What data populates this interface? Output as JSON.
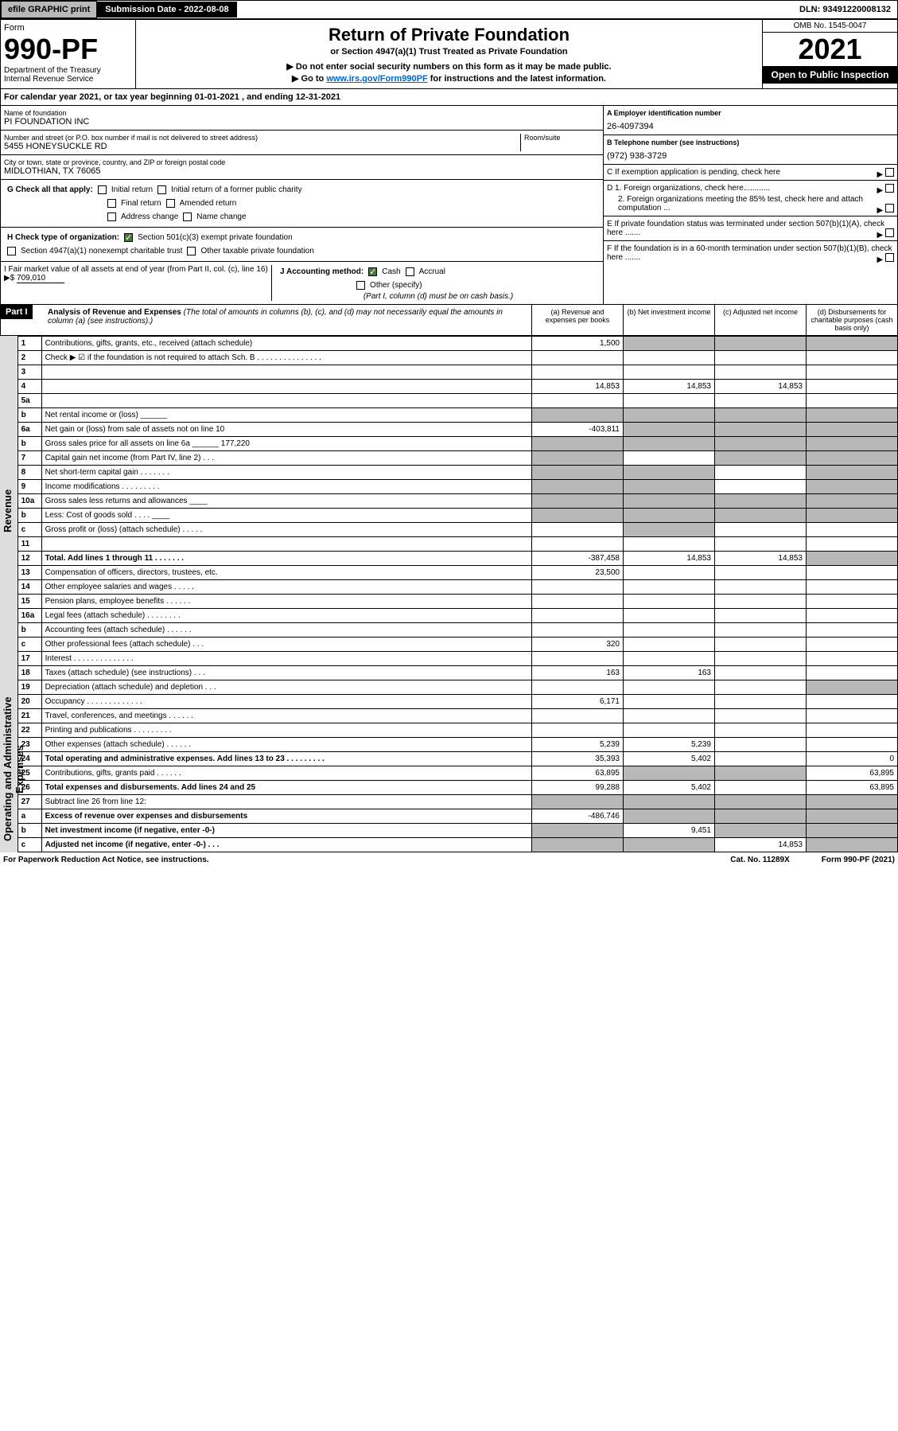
{
  "top": {
    "efile": "efile GRAPHIC print",
    "subdate_label": "Submission Date - 2022-08-08",
    "dln": "DLN: 93491220008132"
  },
  "header": {
    "form_label": "Form",
    "form_num": "990-PF",
    "dept": "Department of the Treasury",
    "irs": "Internal Revenue Service",
    "title": "Return of Private Foundation",
    "subtitle": "or Section 4947(a)(1) Trust Treated as Private Foundation",
    "note1": "▶ Do not enter social security numbers on this form as it may be made public.",
    "note2_pre": "▶ Go to ",
    "note2_link": "www.irs.gov/Form990PF",
    "note2_post": " for instructions and the latest information.",
    "omb": "OMB No. 1545-0047",
    "year": "2021",
    "open": "Open to Public Inspection"
  },
  "calyear": "For calendar year 2021, or tax year beginning 01-01-2021            , and ending 12-31-2021",
  "foundation": {
    "name_lbl": "Name of foundation",
    "name": "PI FOUNDATION INC",
    "addr_lbl": "Number and street (or P.O. box number if mail is not delivered to street address)",
    "addr": "5455 HONEYSUCKLE RD",
    "room_lbl": "Room/suite",
    "city_lbl": "City or town, state or province, country, and ZIP or foreign postal code",
    "city": "MIDLOTHIAN, TX  76065",
    "ein_lbl": "A Employer identification number",
    "ein": "26-4097394",
    "tel_lbl": "B Telephone number (see instructions)",
    "tel": "(972) 938-3729",
    "c_lbl": "C If exemption application is pending, check here",
    "d1_lbl": "D 1. Foreign organizations, check here............",
    "d2_lbl": "2. Foreign organizations meeting the 85% test, check here and attach computation ...",
    "e_lbl": "E  If private foundation status was terminated under section 507(b)(1)(A), check here .......",
    "f_lbl": "F  If the foundation is in a 60-month termination under section 507(b)(1)(B), check here ......."
  },
  "g": {
    "label": "G Check all that apply:",
    "opts": [
      "Initial return",
      "Initial return of a former public charity",
      "Final return",
      "Amended return",
      "Address change",
      "Name change"
    ]
  },
  "h": {
    "label": "H Check type of organization:",
    "opt1": "Section 501(c)(3) exempt private foundation",
    "opt2": "Section 4947(a)(1) nonexempt charitable trust",
    "opt3": "Other taxable private foundation"
  },
  "i": {
    "label": "I Fair market value of all assets at end of year (from Part II, col. (c), line 16) ▶$",
    "val": "709,010"
  },
  "j": {
    "label": "J Accounting method:",
    "cash": "Cash",
    "accrual": "Accrual",
    "other": "Other (specify)",
    "note": "(Part I, column (d) must be on cash basis.)"
  },
  "part1": {
    "label": "Part I",
    "title": "Analysis of Revenue and Expenses",
    "sub": "(The total of amounts in columns (b), (c), and (d) may not necessarily equal the amounts in column (a) (see instructions).)",
    "cols": [
      "(a)  Revenue and expenses per books",
      "(b)  Net investment income",
      "(c)  Adjusted net income",
      "(d)  Disbursements for charitable purposes (cash basis only)"
    ]
  },
  "vert": {
    "rev": "Revenue",
    "exp": "Operating and Administrative Expenses"
  },
  "rows": [
    {
      "n": "1",
      "d": "Contributions, gifts, grants, etc., received (attach schedule)",
      "a": "1,500",
      "b": "",
      "c": "",
      "dsh": [
        "b",
        "c",
        "d"
      ]
    },
    {
      "n": "2",
      "d": "Check ▶ ☑ if the foundation is not required to attach Sch. B     .  .  .  .  .  .  .  .  .  .  .  .  .  .  .",
      "nocols": true
    },
    {
      "n": "3",
      "d": "",
      "a": "",
      "b": "",
      "c": ""
    },
    {
      "n": "4",
      "d": "",
      "a": "14,853",
      "b": "14,853",
      "c": "14,853"
    },
    {
      "n": "5a",
      "d": "",
      "a": "",
      "b": "",
      "c": ""
    },
    {
      "n": "b",
      "d": "Net rental income or (loss)  ______",
      "dsh": [
        "a",
        "b",
        "c",
        "d"
      ]
    },
    {
      "n": "6a",
      "d": "Net gain or (loss) from sale of assets not on line 10",
      "a": "-403,811",
      "dsh": [
        "b",
        "c",
        "d"
      ]
    },
    {
      "n": "b",
      "d": "Gross sales price for all assets on line 6a ______ 177,220",
      "dsh": [
        "a",
        "b",
        "c",
        "d"
      ]
    },
    {
      "n": "7",
      "d": "Capital gain net income (from Part IV, line 2)   .   .   .",
      "dsh": [
        "a",
        "c",
        "d"
      ]
    },
    {
      "n": "8",
      "d": "Net short-term capital gain  .   .   .   .   .   .   .",
      "dsh": [
        "a",
        "b",
        "d"
      ]
    },
    {
      "n": "9",
      "d": "Income modifications  .   .   .   .   .   .   .   .   .",
      "dsh": [
        "a",
        "b",
        "d"
      ]
    },
    {
      "n": "10a",
      "d": "Gross sales less returns and allowances  ____",
      "dsh": [
        "a",
        "b",
        "c",
        "d"
      ]
    },
    {
      "n": "b",
      "d": "Less: Cost of goods sold    .   .   .   .  ____",
      "dsh": [
        "a",
        "b",
        "c",
        "d"
      ]
    },
    {
      "n": "c",
      "d": "Gross profit or (loss) (attach schedule)   .   .   .   .   .",
      "dsh": [
        "b"
      ]
    },
    {
      "n": "11",
      "d": "",
      "a": "",
      "b": "",
      "c": ""
    },
    {
      "n": "12",
      "d": "Total. Add lines 1 through 11   .   .   .   .   .   .   .",
      "a": "-387,458",
      "b": "14,853",
      "c": "14,853",
      "bold": true,
      "dsh": [
        "d"
      ]
    },
    {
      "n": "13",
      "d": "Compensation of officers, directors, trustees, etc.",
      "a": "23,500"
    },
    {
      "n": "14",
      "d": "Other employee salaries and wages   .   .   .   .   ."
    },
    {
      "n": "15",
      "d": "Pension plans, employee benefits  .   .   .   .   .   ."
    },
    {
      "n": "16a",
      "d": "Legal fees (attach schedule)  .   .   .   .   .   .   .   ."
    },
    {
      "n": "b",
      "d": "Accounting fees (attach schedule)  .   .   .   .   .   ."
    },
    {
      "n": "c",
      "d": "Other professional fees (attach schedule)    .   .   .",
      "a": "320"
    },
    {
      "n": "17",
      "d": "Interest  .   .   .   .   .   .   .   .   .   .   .   .   .   ."
    },
    {
      "n": "18",
      "d": "Taxes (attach schedule) (see instructions)   .   .   .",
      "a": "163",
      "b": "163"
    },
    {
      "n": "19",
      "d": "Depreciation (attach schedule) and depletion   .   .   .",
      "dsh": [
        "d"
      ]
    },
    {
      "n": "20",
      "d": "Occupancy  .   .   .   .   .   .   .   .   .   .   .   .   .",
      "a": "6,171"
    },
    {
      "n": "21",
      "d": "Travel, conferences, and meetings  .   .   .   .   .   ."
    },
    {
      "n": "22",
      "d": "Printing and publications  .   .   .   .   .   .   .   .   ."
    },
    {
      "n": "23",
      "d": "Other expenses (attach schedule)  .   .   .   .   .   .",
      "a": "5,239",
      "b": "5,239"
    },
    {
      "n": "24",
      "d": "Total operating and administrative expenses. Add lines 13 to 23   .   .   .   .   .   .   .   .   .",
      "a": "35,393",
      "b": "5,402",
      "c": "",
      "dv": "0",
      "bold": true
    },
    {
      "n": "25",
      "d": "Contributions, gifts, grants paid    .   .   .   .   .   .",
      "a": "63,895",
      "dv": "63,895",
      "dsh": [
        "b",
        "c"
      ]
    },
    {
      "n": "26",
      "d": "Total expenses and disbursements. Add lines 24 and 25",
      "a": "99,288",
      "b": "5,402",
      "c": "",
      "dv": "63,895",
      "bold": true
    },
    {
      "n": "27",
      "d": "Subtract line 26 from line 12:",
      "dsh": [
        "a",
        "b",
        "c",
        "d"
      ]
    },
    {
      "n": "a",
      "d": "Excess of revenue over expenses and disbursements",
      "a": "-486,746",
      "bold": true,
      "dsh": [
        "b",
        "c",
        "d"
      ]
    },
    {
      "n": "b",
      "d": "Net investment income (if negative, enter -0-)",
      "b": "9,451",
      "bold": true,
      "dsh": [
        "a",
        "c",
        "d"
      ]
    },
    {
      "n": "c",
      "d": "Adjusted net income (if negative, enter -0-)   .   .   .",
      "c": "14,853",
      "bold": true,
      "dsh": [
        "a",
        "b",
        "d"
      ]
    }
  ],
  "footer": {
    "left": "For Paperwork Reduction Act Notice, see instructions.",
    "mid": "Cat. No. 11289X",
    "right": "Form 990-PF (2021)"
  },
  "colors": {
    "black": "#000000",
    "gray": "#b8b8b8",
    "link": "#0066cc",
    "green": "#4a7a3a",
    "ltgray": "#dddddd"
  }
}
